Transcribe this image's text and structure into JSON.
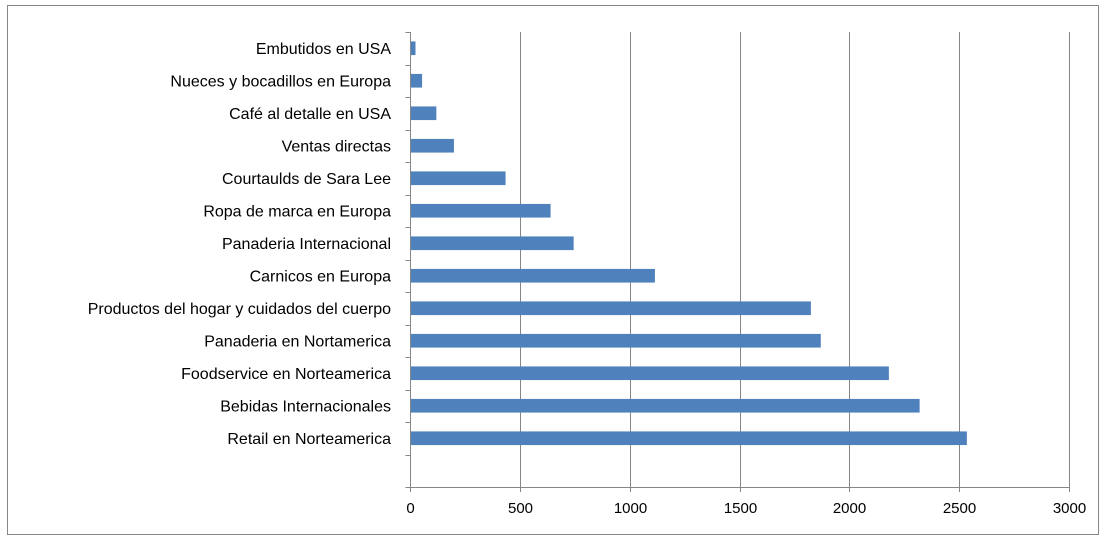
{
  "chart_data": {
    "type": "bar",
    "orientation": "horizontal",
    "title": "",
    "xlabel": "",
    "ylabel": "",
    "categories": [
      "Embutidos en USA",
      "Nueces y bocadillos en Europa",
      "Café al detalle en USA",
      "Ventas directas",
      "Courtaulds de Sara Lee",
      "Ropa de marca en Europa",
      "Panaderia Internacional",
      "Carnicos en Europa",
      "Productos del hogar y cuidados del cuerpo",
      "Panaderia en Nortamerica",
      "Foodservice en Norteamerica",
      "Bebidas Internacionales",
      "Retail en Norteamerica"
    ],
    "values": [
      25,
      55,
      120,
      200,
      435,
      640,
      745,
      1115,
      1825,
      1870,
      2180,
      2320,
      2535
    ],
    "xlim": [
      0,
      3000
    ],
    "xticks": [
      "0",
      "500",
      "1000",
      "1500",
      "2000",
      "2500",
      "3000"
    ],
    "grid": "vertical",
    "legend": "none",
    "bar_color": "#4F81BD",
    "grid_color": "#868686"
  }
}
